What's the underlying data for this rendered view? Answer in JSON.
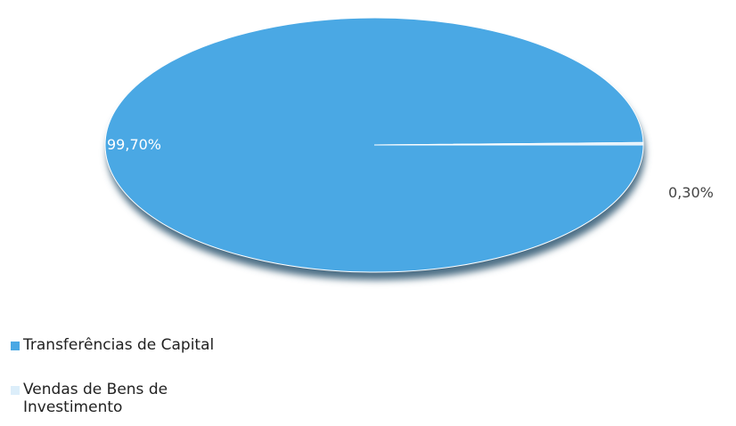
{
  "chart_data": {
    "type": "pie",
    "categories": [
      "Transferências de Capital",
      "Vendas de Bens de Investimento"
    ],
    "values": [
      99.7,
      0.3
    ],
    "value_labels": [
      "99,70%",
      "0,30%"
    ],
    "colors": [
      "#4aa8e4",
      "#dceefa"
    ]
  }
}
